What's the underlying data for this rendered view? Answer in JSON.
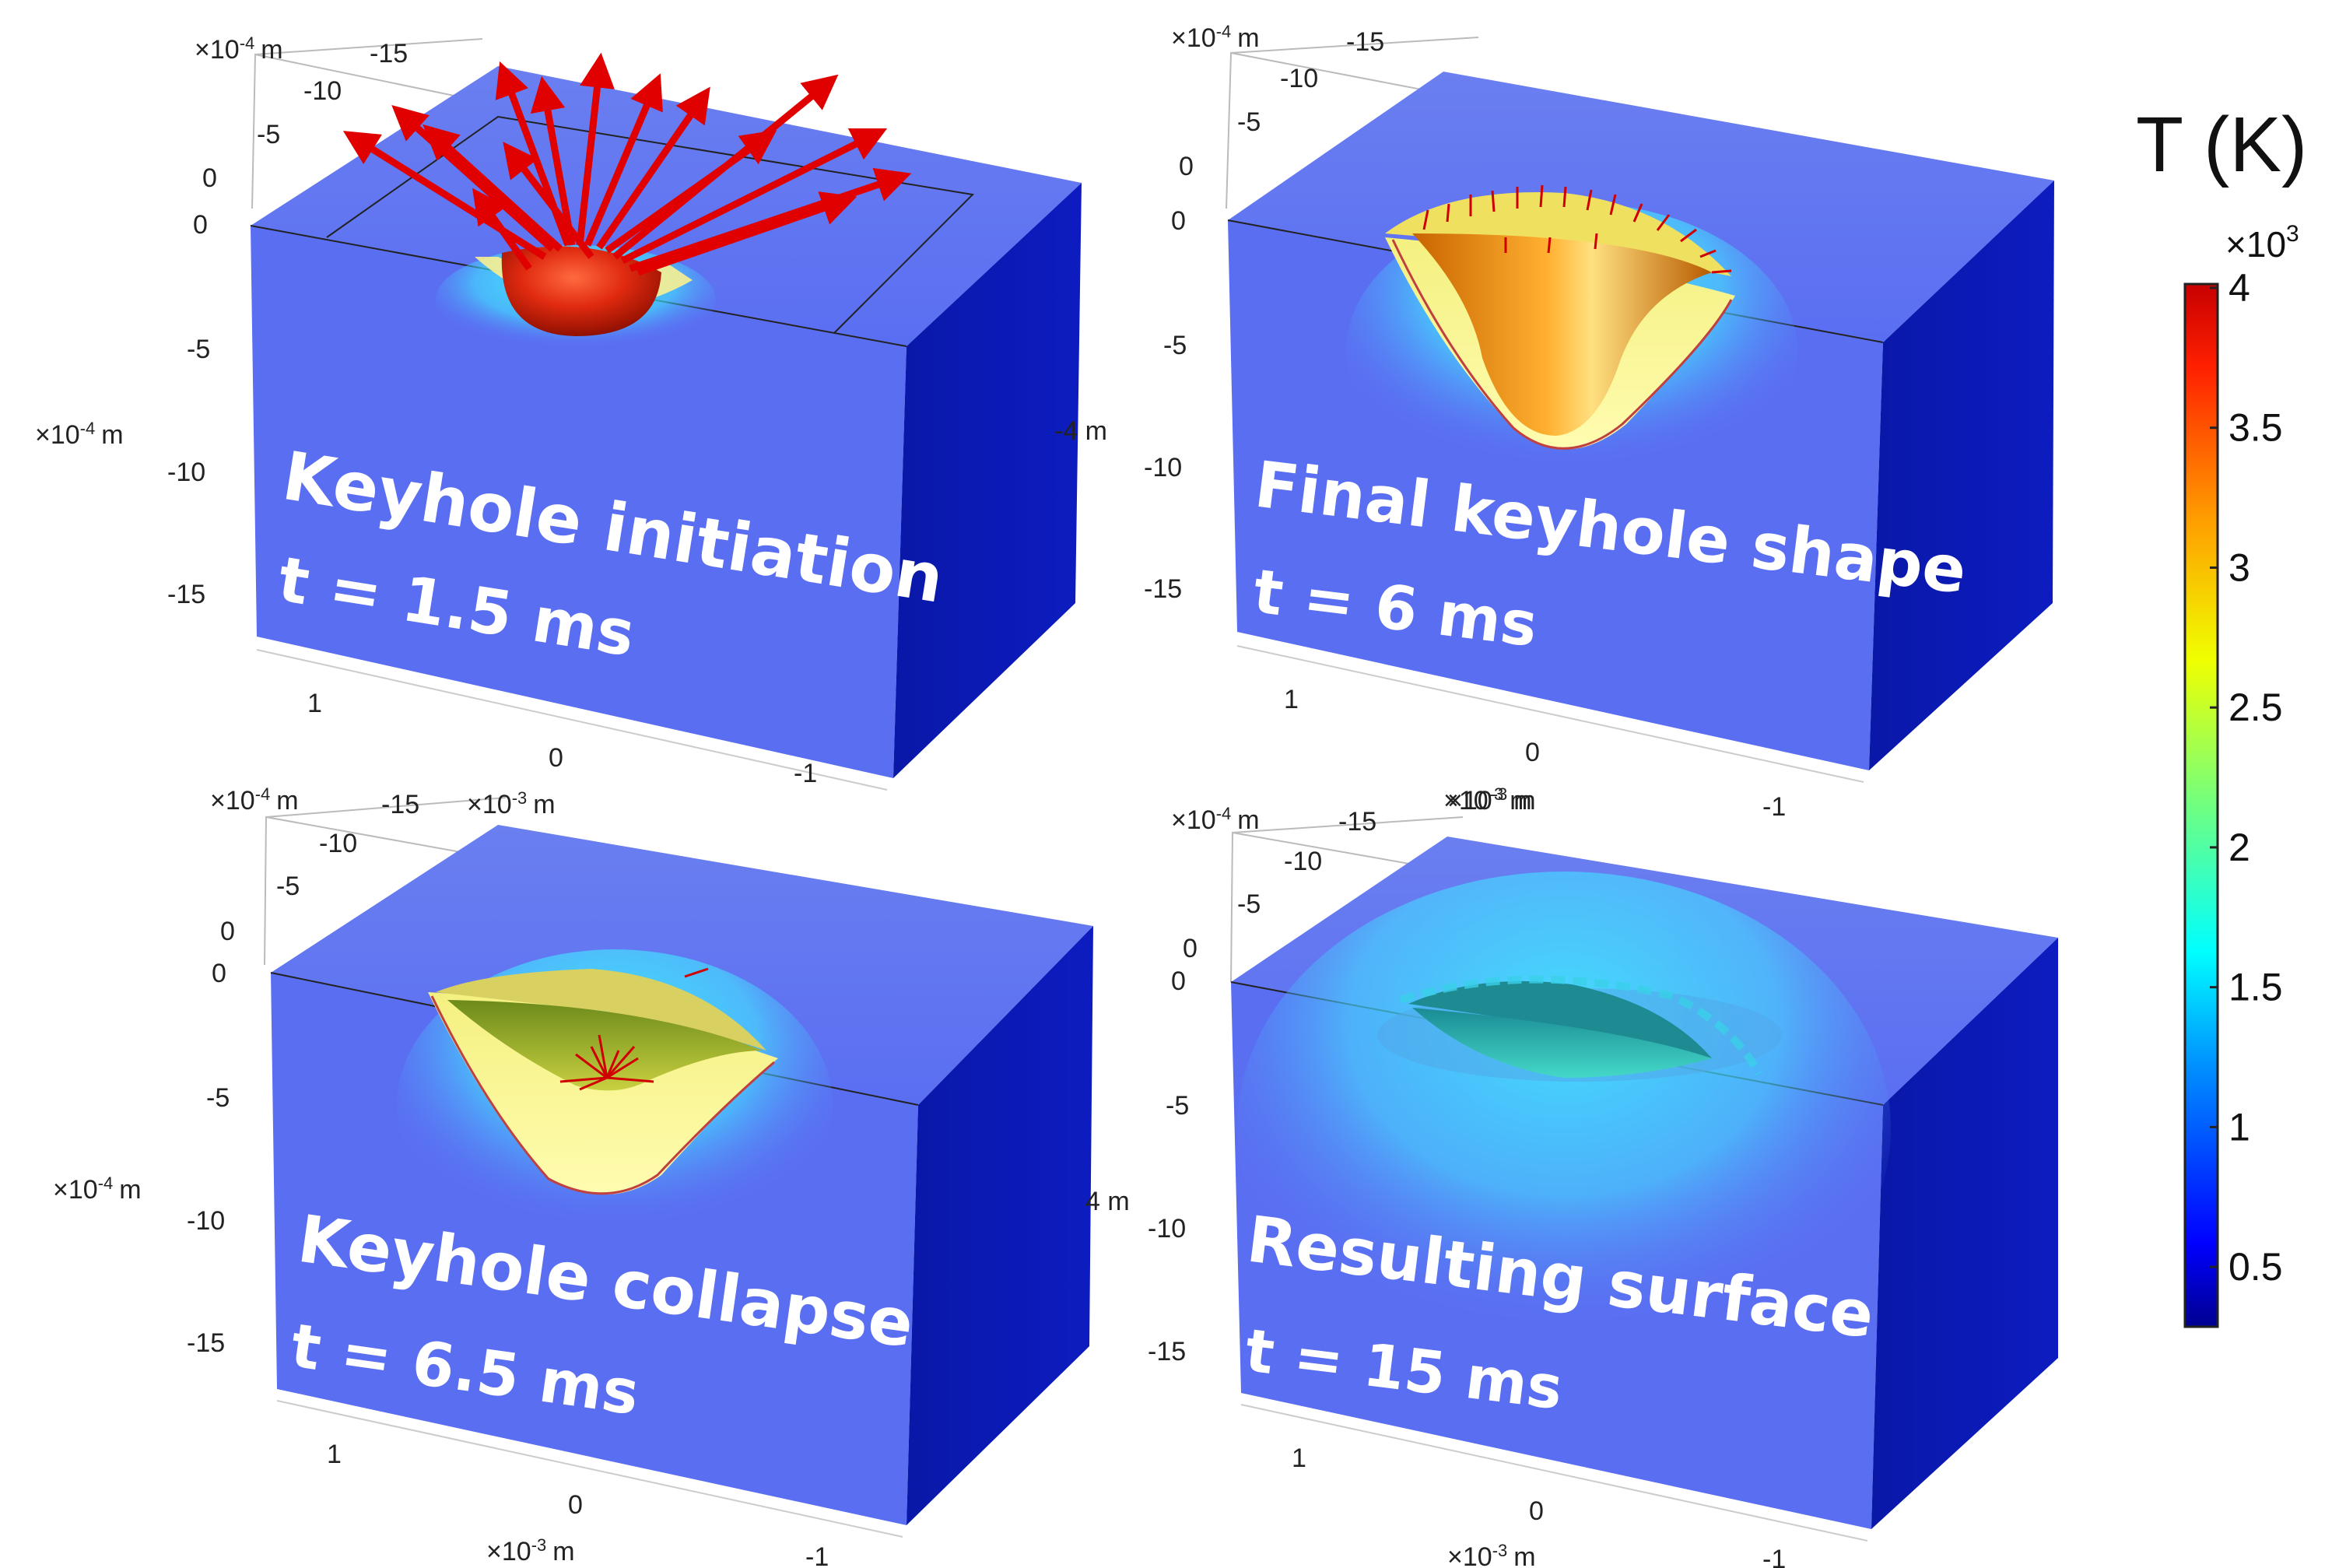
{
  "colorbar": {
    "title": "T (K)",
    "multiplier_base": "×10",
    "multiplier_exp": "3",
    "tick_labels": [
      "4",
      "3.5",
      "3",
      "2.5",
      "2",
      "1.5",
      "1",
      "0.5"
    ],
    "range": [
      0.3,
      4
    ],
    "colors": [
      "#000080",
      "#0000ff",
      "#0080ff",
      "#00ffff",
      "#80ff80",
      "#ffff00",
      "#ff8000",
      "#ff0000",
      "#c00000"
    ]
  },
  "panels": [
    {
      "caption_line1": "Keyhole initiation",
      "caption_line2": "t = 1.5 ms",
      "y_ticks": [
        "-15",
        "-10",
        "-5",
        "0"
      ],
      "z_ticks": [
        "0",
        "-5",
        "-10",
        "-15"
      ],
      "x_ticks": [
        "1",
        "0",
        "-1"
      ],
      "unit_y_base": "×10",
      "unit_y_exp": "-4",
      "unit_y_suffix": "m",
      "unit_z_base": "×10",
      "unit_z_exp": "-4",
      "unit_z_suffix": "m",
      "unit_x_base": "×10",
      "unit_x_exp": "-3",
      "unit_x_suffix": "m",
      "side_unit_fragment": "-4 m"
    },
    {
      "caption_line1": "Final keyhole shape",
      "caption_line2": "t = 6 ms",
      "y_ticks": [
        "-15",
        "-10",
        "-5",
        "0"
      ],
      "z_ticks": [
        "0",
        "-5",
        "-10",
        "-15"
      ],
      "x_ticks": [
        "1",
        "0",
        "-1"
      ],
      "unit_y_base": "×10",
      "unit_y_exp": "-4",
      "unit_y_suffix": "m",
      "unit_x_base": "×10",
      "unit_x_exp": "-3",
      "unit_x_suffix": "m"
    },
    {
      "caption_line1": "Keyhole collapse",
      "caption_line2": "t = 6.5 ms",
      "y_ticks": [
        "-15",
        "-10",
        "-5",
        "0"
      ],
      "z_ticks": [
        "0",
        "-5",
        "-10",
        "-15"
      ],
      "x_ticks": [
        "1",
        "0",
        "-1"
      ],
      "unit_y_base": "×10",
      "unit_y_exp": "-4",
      "unit_y_suffix": "m",
      "unit_z_base": "×10",
      "unit_z_exp": "-4",
      "unit_z_suffix": "m",
      "unit_x_base": "×10",
      "unit_x_exp": "-3",
      "unit_x_suffix": "m",
      "side_unit_fragment": "4 m"
    },
    {
      "caption_line1": "Resulting surface",
      "caption_line2": "t = 15 ms",
      "y_ticks": [
        "-15",
        "-10",
        "-5",
        "0"
      ],
      "z_ticks": [
        "0",
        "-5",
        "-10",
        "-15"
      ],
      "x_ticks": [
        "1",
        "0",
        "-1"
      ],
      "unit_y_base": "×10",
      "unit_y_exp": "-4",
      "unit_y_suffix": "m",
      "unit_x_base": "×10",
      "unit_x_exp": "-3",
      "unit_x_suffix": "m"
    }
  ]
}
